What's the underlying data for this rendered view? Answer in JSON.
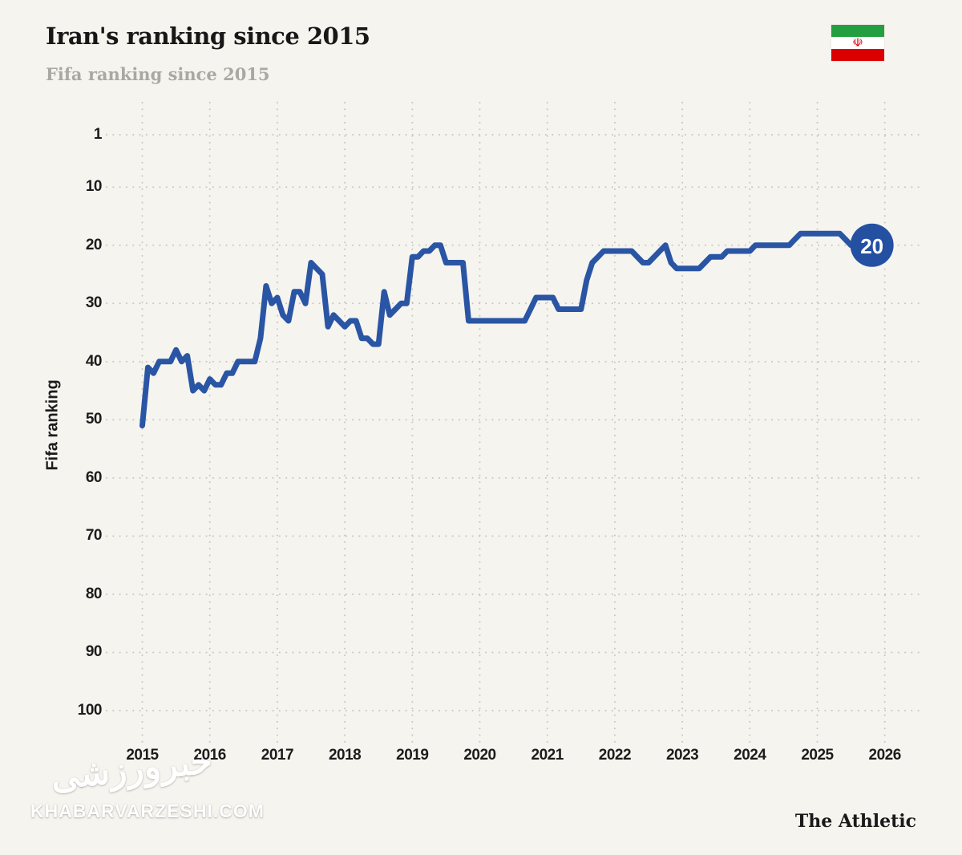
{
  "header": {
    "title": "Iran's ranking since 2015",
    "subtitle": "Fifa ranking since 2015"
  },
  "flag": {
    "emblem": "☫",
    "colors": {
      "green": "#239f40",
      "white": "#ffffff",
      "red": "#da0000",
      "emblem_red": "#da0000"
    }
  },
  "footer": {
    "watermark_fa": "خبرورزشی",
    "watermark_url": "KHABARVARZESHI.COM",
    "credit": "The Athletic"
  },
  "chart_data": {
    "type": "line",
    "title": "Iran's ranking since 2015",
    "subtitle": "Fifa ranking since 2015",
    "xlabel": "",
    "ylabel": "Fifa ranking",
    "x_ticks": [
      2015,
      2016,
      2017,
      2018,
      2019,
      2020,
      2021,
      2022,
      2023,
      2024,
      2025,
      2026
    ],
    "y_ticks": [
      1,
      10,
      20,
      30,
      40,
      50,
      60,
      70,
      80,
      90,
      100
    ],
    "ylim": [
      1,
      100
    ],
    "y_inverted": true,
    "grid": "dotted",
    "legend": "none",
    "line_color": "#2a55a4",
    "grid_color": "#c8c7bf",
    "end_label": {
      "value": 20,
      "fill": "#2450a2",
      "text_color": "#ffffff"
    },
    "series": [
      {
        "name": "Iran FIFA ranking",
        "start_year": 2015,
        "points_per_year": 12,
        "values": [
          51,
          41,
          42,
          40,
          40,
          40,
          38,
          40,
          39,
          45,
          44,
          45,
          43,
          44,
          44,
          42,
          42,
          40,
          40,
          40,
          40,
          36,
          27,
          30,
          29,
          32,
          33,
          28,
          28,
          30,
          23,
          24,
          25,
          34,
          32,
          33,
          34,
          33,
          33,
          36,
          36,
          37,
          37,
          28,
          32,
          31,
          30,
          30,
          22,
          22,
          21,
          21,
          20,
          20,
          23,
          23,
          23,
          23,
          33,
          33,
          33,
          33,
          33,
          33,
          33,
          33,
          33,
          33,
          33,
          31,
          29,
          29,
          29,
          29,
          31,
          31,
          31,
          31,
          31,
          26,
          23,
          22,
          21,
          21,
          21,
          21,
          21,
          21,
          22,
          23,
          23,
          22,
          21,
          20,
          23,
          24,
          24,
          24,
          24,
          24,
          23,
          22,
          22,
          22,
          21,
          21,
          21,
          21,
          21,
          20,
          20,
          20,
          20,
          20,
          20,
          20,
          19,
          18,
          18,
          18,
          18,
          18,
          18,
          18,
          18,
          19,
          20,
          20,
          20,
          20
        ]
      }
    ]
  }
}
